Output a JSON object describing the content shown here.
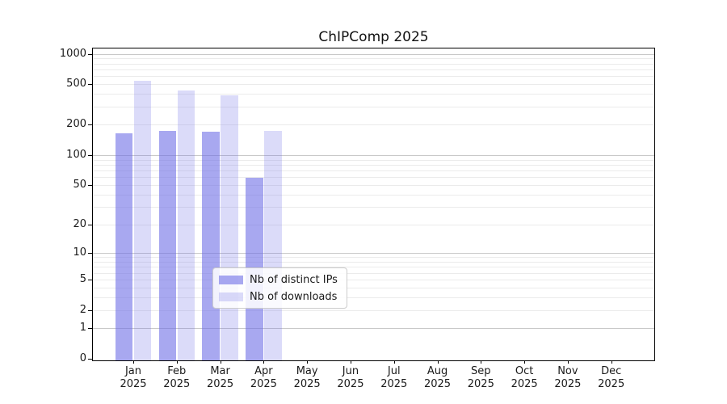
{
  "title": "ChIPComp 2025",
  "colors": {
    "bar_distinct_ips": "rgba(110,110,230,0.6)",
    "bar_downloads": "rgba(110,110,230,0.25)",
    "grid_minor": "#ebebeb",
    "grid_major": "#c9c9c9",
    "spine": "#000000"
  },
  "chart_data": {
    "type": "bar",
    "title": "ChIPComp 2025",
    "scale": "log1p",
    "categories": [
      "Jan",
      "Feb",
      "Mar",
      "Apr",
      "May",
      "Jun",
      "Jul",
      "Aug",
      "Sep",
      "Oct",
      "Nov",
      "Dec"
    ],
    "category_year": "2025",
    "series": [
      {
        "name": "Nb of distinct IPs",
        "color": "rgba(110,110,230,0.6)",
        "values": [
          165,
          172,
          171,
          59,
          null,
          null,
          null,
          null,
          null,
          null,
          null,
          null
        ]
      },
      {
        "name": "Nb of downloads",
        "color": "rgba(110,110,230,0.25)",
        "values": [
          540,
          435,
          392,
          175,
          null,
          null,
          null,
          null,
          null,
          null,
          null,
          null
        ]
      }
    ],
    "yticks": [
      1000,
      500,
      200,
      100,
      50,
      20,
      10,
      5,
      2,
      1,
      0
    ],
    "ylim": [
      0,
      1130
    ],
    "xlabel": "",
    "ylabel": "",
    "grid": "horizontal",
    "legend_position": "inside-bottom-center"
  },
  "legend": {
    "items": [
      {
        "label": "Nb of distinct IPs"
      },
      {
        "label": "Nb of downloads"
      }
    ]
  }
}
